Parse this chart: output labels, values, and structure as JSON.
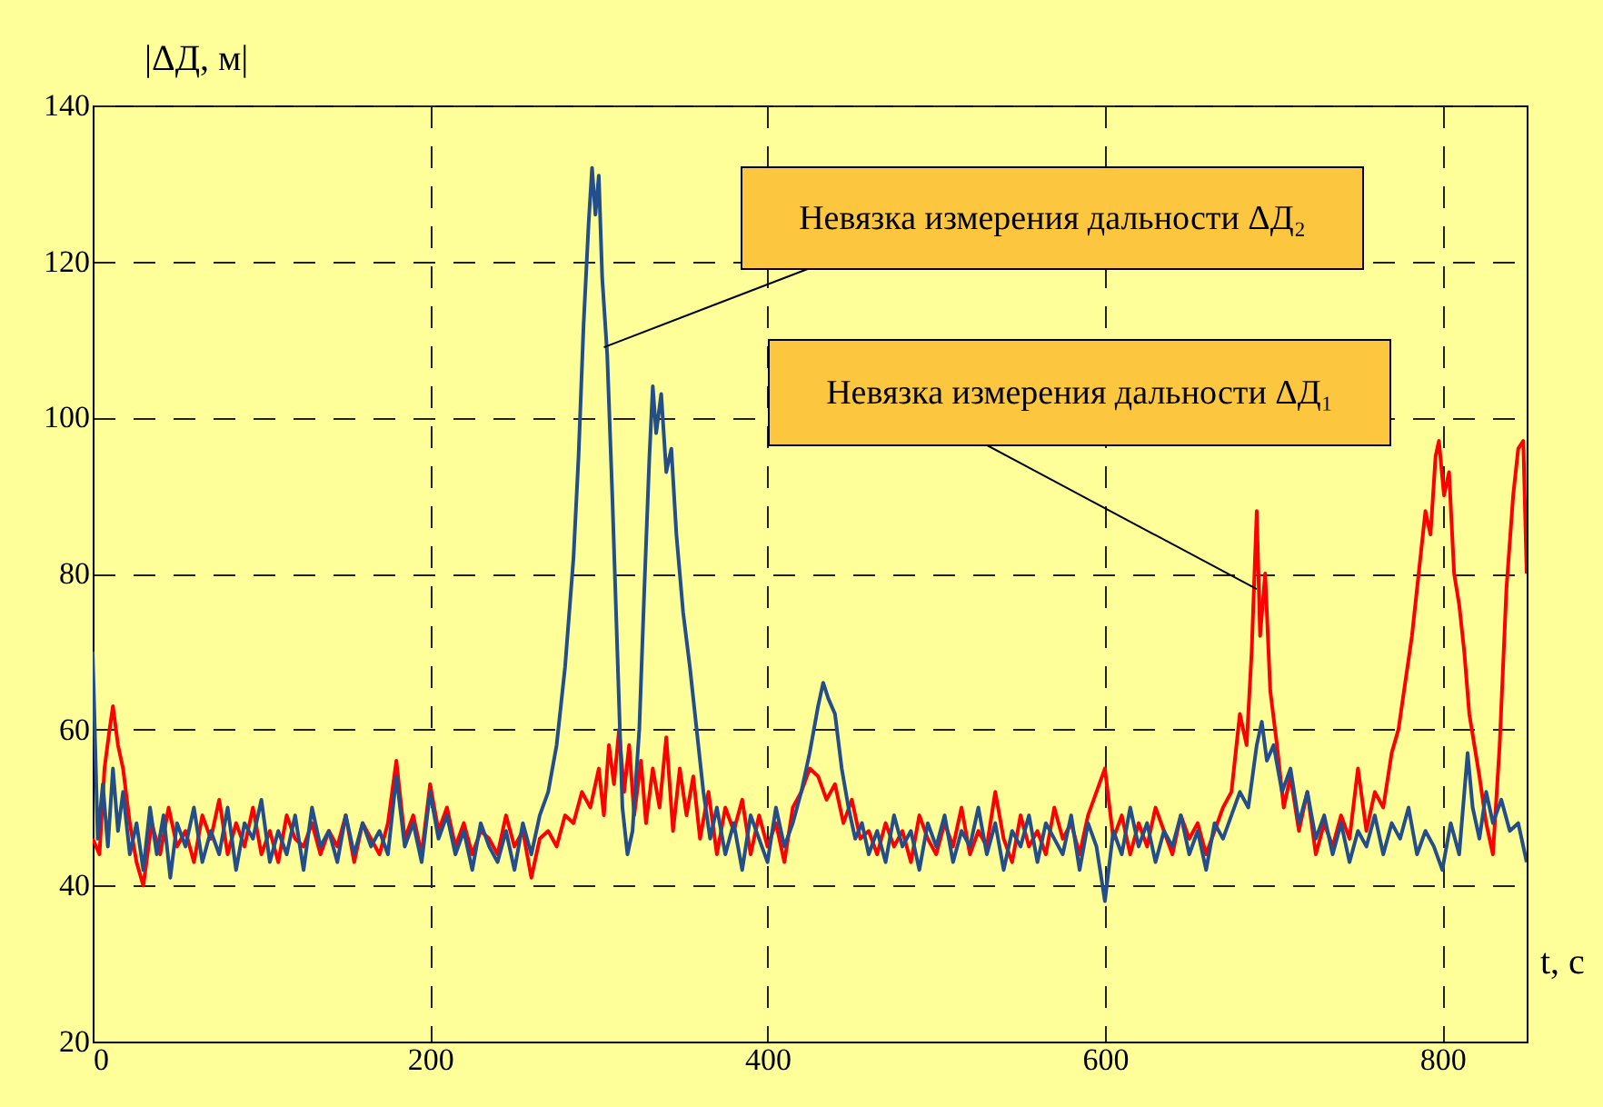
{
  "chart_data": {
    "type": "line",
    "xlabel": "t, с",
    "ylabel": "|ΔД, м|",
    "xlim": [
      0,
      850
    ],
    "xticks": [
      0,
      200,
      400,
      600,
      800
    ],
    "ylim": [
      20,
      140
    ],
    "yticks": [
      20,
      40,
      60,
      80,
      100,
      120,
      140
    ],
    "grid": true,
    "line_style": "solid",
    "marker": "none",
    "annotations": [
      {
        "text": "Невязка измерения дальности ΔД₂",
        "x": 303,
        "y": 109
      },
      {
        "text": "Невязка измерения дальности ΔД₁",
        "x": 690,
        "y": 78
      }
    ],
    "series": [
      {
        "color": "#ff0000",
        "x": [
          0,
          4,
          7,
          10,
          12,
          15,
          18,
          22,
          26,
          30,
          35,
          40,
          45,
          50,
          55,
          60,
          65,
          70,
          75,
          80,
          85,
          90,
          95,
          100,
          105,
          110,
          115,
          120,
          125,
          130,
          135,
          140,
          145,
          150,
          155,
          160,
          165,
          170,
          175,
          180,
          185,
          190,
          195,
          200,
          205,
          210,
          215,
          220,
          225,
          230,
          235,
          240,
          245,
          250,
          255,
          260,
          265,
          270,
          275,
          280,
          285,
          290,
          295,
          300,
          303,
          306,
          309,
          312,
          315,
          318,
          321,
          325,
          328,
          332,
          336,
          340,
          344,
          348,
          352,
          356,
          360,
          365,
          370,
          375,
          380,
          385,
          390,
          395,
          400,
          405,
          410,
          415,
          420,
          425,
          430,
          435,
          440,
          445,
          450,
          455,
          460,
          465,
          470,
          475,
          480,
          485,
          490,
          495,
          500,
          505,
          510,
          515,
          520,
          525,
          530,
          535,
          540,
          545,
          550,
          555,
          560,
          565,
          570,
          575,
          580,
          585,
          590,
          595,
          600,
          605,
          610,
          615,
          620,
          625,
          630,
          635,
          640,
          645,
          650,
          655,
          660,
          665,
          670,
          675,
          680,
          684,
          687,
          690,
          692,
          695,
          698,
          702,
          706,
          710,
          715,
          720,
          725,
          730,
          735,
          740,
          745,
          750,
          755,
          760,
          765,
          770,
          774,
          778,
          782,
          786,
          790,
          793,
          796,
          798,
          801,
          804,
          807,
          810,
          813,
          816,
          819,
          822,
          826,
          830,
          834,
          838,
          842,
          845,
          848,
          850
        ],
        "values": [
          46,
          44,
          55,
          60,
          63,
          58,
          55,
          48,
          43,
          40,
          48,
          44,
          50,
          45,
          47,
          43,
          49,
          46,
          51,
          44,
          48,
          45,
          50,
          44,
          47,
          43,
          49,
          46,
          45,
          48,
          44,
          47,
          45,
          49,
          43,
          48,
          46,
          44,
          48,
          56,
          46,
          49,
          44,
          53,
          47,
          50,
          45,
          48,
          44,
          47,
          46,
          44,
          49,
          45,
          47,
          41,
          46,
          47,
          45,
          49,
          48,
          52,
          50,
          55,
          49,
          58,
          53,
          60,
          52,
          58,
          49,
          56,
          48,
          55,
          50,
          59,
          47,
          55,
          49,
          54,
          46,
          52,
          44,
          50,
          47,
          51,
          44,
          49,
          45,
          48,
          43,
          50,
          52,
          55,
          54,
          51,
          53,
          48,
          51,
          46,
          47,
          44,
          48,
          45,
          47,
          43,
          49,
          46,
          44,
          48,
          45,
          50,
          44,
          47,
          45,
          52,
          46,
          43,
          49,
          45,
          47,
          44,
          50,
          46,
          48,
          44,
          49,
          52,
          55,
          46,
          49,
          44,
          48,
          45,
          50,
          47,
          44,
          49,
          46,
          48,
          44,
          47,
          50,
          52,
          62,
          58,
          70,
          88,
          72,
          80,
          65,
          58,
          50,
          54,
          47,
          52,
          44,
          48,
          45,
          49,
          46,
          55,
          47,
          52,
          50,
          57,
          60,
          66,
          72,
          80,
          88,
          85,
          95,
          97,
          90,
          93,
          80,
          76,
          70,
          62,
          58,
          54,
          48,
          44,
          58,
          78,
          90,
          96,
          97,
          80
        ]
      },
      {
        "color": "#234e8a",
        "x": [
          0,
          3,
          6,
          9,
          12,
          15,
          18,
          22,
          26,
          30,
          34,
          38,
          42,
          46,
          50,
          55,
          60,
          65,
          70,
          75,
          80,
          85,
          90,
          95,
          100,
          105,
          110,
          115,
          120,
          125,
          130,
          135,
          140,
          145,
          150,
          155,
          160,
          165,
          170,
          175,
          180,
          185,
          190,
          195,
          200,
          205,
          210,
          215,
          220,
          225,
          230,
          235,
          240,
          245,
          250,
          255,
          260,
          265,
          270,
          275,
          280,
          285,
          288,
          291,
          294,
          296,
          298,
          300,
          302,
          305,
          308,
          311,
          314,
          317,
          320,
          324,
          327,
          330,
          332,
          334,
          337,
          340,
          343,
          346,
          350,
          354,
          358,
          362,
          366,
          370,
          375,
          380,
          385,
          390,
          395,
          400,
          405,
          410,
          415,
          420,
          425,
          430,
          433,
          436,
          440,
          444,
          448,
          452,
          456,
          460,
          465,
          470,
          475,
          480,
          485,
          490,
          495,
          500,
          505,
          510,
          515,
          520,
          525,
          530,
          535,
          540,
          545,
          550,
          555,
          560,
          565,
          570,
          575,
          580,
          585,
          590,
          595,
          600,
          605,
          610,
          615,
          620,
          625,
          630,
          635,
          640,
          645,
          650,
          655,
          660,
          665,
          670,
          675,
          680,
          685,
          690,
          693,
          696,
          700,
          705,
          710,
          715,
          720,
          725,
          730,
          735,
          740,
          745,
          750,
          755,
          760,
          765,
          770,
          775,
          780,
          785,
          790,
          795,
          800,
          805,
          810,
          815,
          818,
          822,
          826,
          830,
          835,
          840,
          845,
          850
        ],
        "values": [
          70,
          46,
          53,
          45,
          55,
          47,
          52,
          44,
          48,
          42,
          50,
          44,
          49,
          41,
          48,
          45,
          50,
          43,
          47,
          44,
          50,
          42,
          48,
          46,
          51,
          43,
          47,
          44,
          49,
          42,
          50,
          45,
          47,
          43,
          49,
          44,
          48,
          45,
          47,
          44,
          54,
          45,
          48,
          43,
          52,
          46,
          49,
          44,
          47,
          42,
          48,
          45,
          43,
          47,
          42,
          48,
          44,
          49,
          52,
          58,
          68,
          82,
          95,
          112,
          125,
          132,
          126,
          131,
          118,
          108,
          90,
          70,
          50,
          44,
          47,
          60,
          78,
          95,
          104,
          98,
          103,
          93,
          96,
          85,
          75,
          68,
          60,
          52,
          46,
          50,
          44,
          48,
          42,
          49,
          46,
          43,
          50,
          45,
          48,
          52,
          57,
          63,
          66,
          64,
          62,
          55,
          50,
          46,
          48,
          44,
          47,
          43,
          49,
          45,
          47,
          42,
          48,
          45,
          49,
          43,
          47,
          45,
          50,
          44,
          48,
          42,
          47,
          45,
          49,
          43,
          48,
          46,
          44,
          49,
          42,
          48,
          45,
          38,
          47,
          44,
          50,
          45,
          48,
          43,
          47,
          45,
          49,
          44,
          47,
          42,
          48,
          46,
          49,
          52,
          50,
          58,
          61,
          56,
          58,
          52,
          55,
          48,
          52,
          46,
          49,
          44,
          48,
          43,
          47,
          45,
          49,
          44,
          48,
          46,
          50,
          44,
          47,
          45,
          42,
          48,
          44,
          57,
          50,
          46,
          52,
          48,
          51,
          47,
          48,
          43
        ]
      }
    ]
  }
}
